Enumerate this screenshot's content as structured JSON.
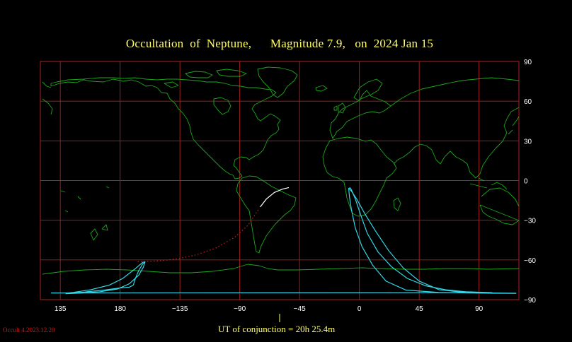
{
  "title": "Occultation  of  Neptune,      Magnitude 7.9,   on  2024 Jan 15",
  "footer": {
    "ut_label": "UT of conjunction = 20h 25.4m",
    "version": "Occult 4.2023.12.20"
  },
  "axes": {
    "lon_labels": [
      "135",
      "180",
      "−135",
      "−90",
      "−45",
      "0",
      "45",
      "90"
    ],
    "lat_labels": [
      "90",
      "60",
      "30",
      "0",
      "−30",
      "−60",
      "−90"
    ]
  },
  "colors": {
    "grid": "#b02020",
    "coast": "#1aa81a",
    "path_limits": "#33d6e6",
    "path_day": "#ffffff",
    "path_dotted": "#cc2020",
    "text": "#ffff66"
  },
  "path": {
    "day_arc": [
      [
        -74.6,
        -20
      ],
      [
        -70,
        -14
      ],
      [
        -64,
        -9
      ],
      [
        -58,
        -6.5
      ],
      [
        -53,
        -5.3
      ]
    ],
    "dotted_arc": [
      [
        -166.8,
        -61.3
      ],
      [
        -158,
        -61
      ],
      [
        -148,
        -60.5
      ],
      [
        -136,
        -59
      ],
      [
        -122,
        -56
      ],
      [
        -108,
        -51
      ],
      [
        -94,
        -43
      ],
      [
        -84,
        -34
      ],
      [
        -76,
        -22
      ]
    ],
    "north_limit": [
      [
        128,
        -85
      ],
      [
        100,
        -84.7
      ],
      [
        80,
        -84
      ],
      [
        65,
        -82.6
      ],
      [
        50,
        -79.6
      ],
      [
        36,
        -74
      ],
      [
        24,
        -65
      ],
      [
        14,
        -54
      ],
      [
        6,
        -40
      ],
      [
        1,
        -26
      ],
      [
        -3,
        -14
      ],
      [
        -6,
        -7
      ],
      [
        -7,
        -5.5
      ],
      [
        -8,
        -6
      ],
      [
        -7.5,
        -12
      ],
      [
        -6,
        -22
      ],
      [
        -3,
        -36
      ],
      [
        2,
        -50
      ],
      [
        10,
        -64
      ],
      [
        20,
        -76
      ],
      [
        35,
        -82.8
      ],
      [
        60,
        -84.6
      ],
      [
        100,
        -85.2
      ],
      [
        118,
        -85.3
      ]
    ],
    "south_limit": [
      [
        -8,
        -6
      ],
      [
        -6,
        -8
      ],
      [
        -2,
        -14
      ],
      [
        4,
        -25
      ],
      [
        12,
        -38
      ],
      [
        22,
        -53
      ],
      [
        33,
        -66
      ],
      [
        45,
        -76
      ],
      [
        60,
        -82.6
      ],
      [
        80,
        -84.6
      ],
      [
        100,
        -85
      ],
      [
        118,
        -85.2
      ]
    ],
    "west_lobe_a": [
      [
        139,
        -85.5
      ],
      [
        150,
        -85.1
      ],
      [
        165,
        -84
      ],
      [
        178,
        -82
      ],
      [
        187,
        -78
      ],
      [
        194,
        -71.5
      ],
      [
        197.5,
        -65.5
      ],
      [
        198.7,
        -61.6
      ],
      [
        197,
        -61.8
      ],
      [
        191,
        -67
      ],
      [
        182,
        -74
      ],
      [
        172,
        -79
      ],
      [
        158,
        -82.5
      ],
      [
        145,
        -84.5
      ],
      [
        139,
        -85.2
      ]
    ],
    "west_lobe_b": [
      [
        139,
        -85.2
      ],
      [
        152,
        -84.4
      ],
      [
        168,
        -82.8
      ],
      [
        180,
        -81.2
      ],
      [
        187,
        -80.6
      ],
      [
        190,
        -79
      ],
      [
        191.5,
        -74
      ],
      [
        194,
        -68
      ],
      [
        197,
        -63
      ],
      [
        198.7,
        -61.6
      ]
    ]
  },
  "map_caption": ""
}
